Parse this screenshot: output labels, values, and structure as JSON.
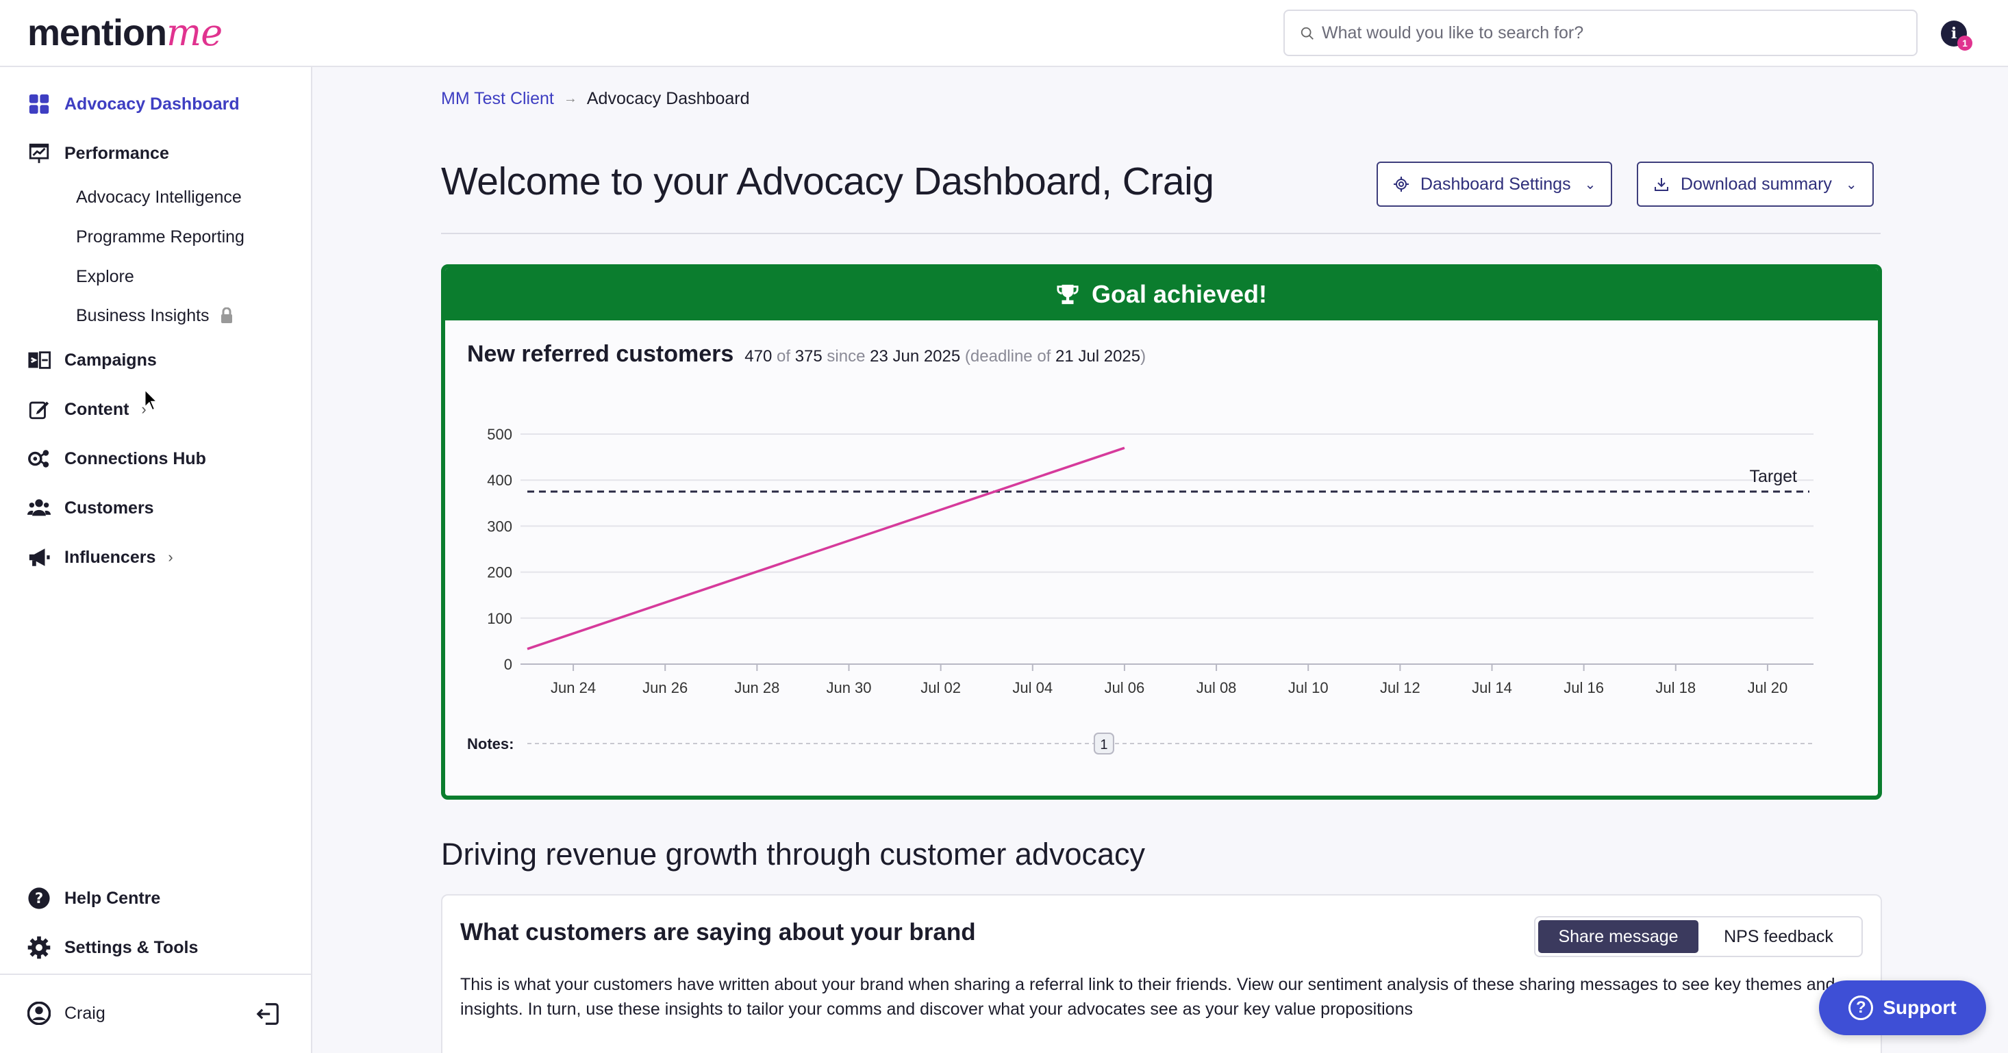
{
  "brand": {
    "logo_text": "mention",
    "logo_accent": "me",
    "accent_color": "#e0338f",
    "primary_color": "#3e3ec2"
  },
  "search": {
    "placeholder": "What would you like to search for?"
  },
  "notifications": {
    "icon_letter": "i",
    "count": "1"
  },
  "sidebar": {
    "items": [
      {
        "label": "Advocacy Dashboard",
        "icon": "grid-icon",
        "active": true
      },
      {
        "label": "Performance",
        "icon": "chart-board-icon"
      },
      {
        "label": "Campaigns",
        "icon": "campaigns-icon"
      },
      {
        "label": "Content",
        "icon": "pencil-square-icon"
      },
      {
        "label": "Connections Hub",
        "icon": "connections-icon"
      },
      {
        "label": "Customers",
        "icon": "users-icon"
      },
      {
        "label": "Influencers",
        "icon": "megaphone-icon"
      }
    ],
    "performance_sub": [
      "Advocacy Intelligence",
      "Programme Reporting",
      "Explore",
      "Business Insights"
    ],
    "bottom": [
      {
        "label": "Help Centre",
        "icon": "help-icon"
      },
      {
        "label": "Settings & Tools",
        "icon": "gear-icon"
      }
    ],
    "user": {
      "name": "Craig"
    }
  },
  "breadcrumb": {
    "parent": "MM Test Client",
    "current": "Advocacy Dashboard"
  },
  "page": {
    "title": "Welcome to your Advocacy Dashboard, Craig"
  },
  "actions": {
    "settings_label": "Dashboard Settings",
    "download_label": "Download summary"
  },
  "goal": {
    "banner": "Goal achieved!",
    "metric_title": "New referred customers",
    "value": "470",
    "of_word": "of",
    "target": "375",
    "since_word": "since",
    "since_date": "23 Jun 2025",
    "deadline_prefix": "(deadline of",
    "deadline_date": "21 Jul 2025",
    "deadline_suffix": ")",
    "notes_label": "Notes:",
    "notes_marker": "1"
  },
  "chart_data": {
    "type": "line",
    "x_ticks": [
      "Jun 24",
      "Jun 26",
      "Jun 28",
      "Jun 30",
      "Jul 02",
      "Jul 04",
      "Jul 06",
      "Jul 08",
      "Jul 10",
      "Jul 12",
      "Jul 14",
      "Jul 16",
      "Jul 18",
      "Jul 20"
    ],
    "y_ticks": [
      "0",
      "100",
      "200",
      "300",
      "400",
      "500"
    ],
    "ylim": [
      0,
      500
    ],
    "xlim": [
      "2025-06-23",
      "2025-07-21"
    ],
    "series": [
      {
        "color": "#d63a9b",
        "points": [
          [
            "2025-06-23",
            33
          ],
          [
            "2025-07-06",
            470
          ]
        ]
      }
    ],
    "target_line": {
      "label": "Target",
      "value": 375
    },
    "grid": true
  },
  "section": {
    "title": "Driving revenue growth through customer advocacy"
  },
  "brand_card": {
    "title": "What customers are saying about your brand",
    "toggle": [
      "Share message",
      "NPS feedback"
    ],
    "selected": 0,
    "description": "This is what your customers have written about your brand when sharing a referral link to their friends. View our sentiment analysis of these sharing messages to see key themes and insights. In turn, use these insights to tailor your comms and discover what your advocates see as your key value propositions"
  },
  "support": {
    "label": "Support"
  }
}
